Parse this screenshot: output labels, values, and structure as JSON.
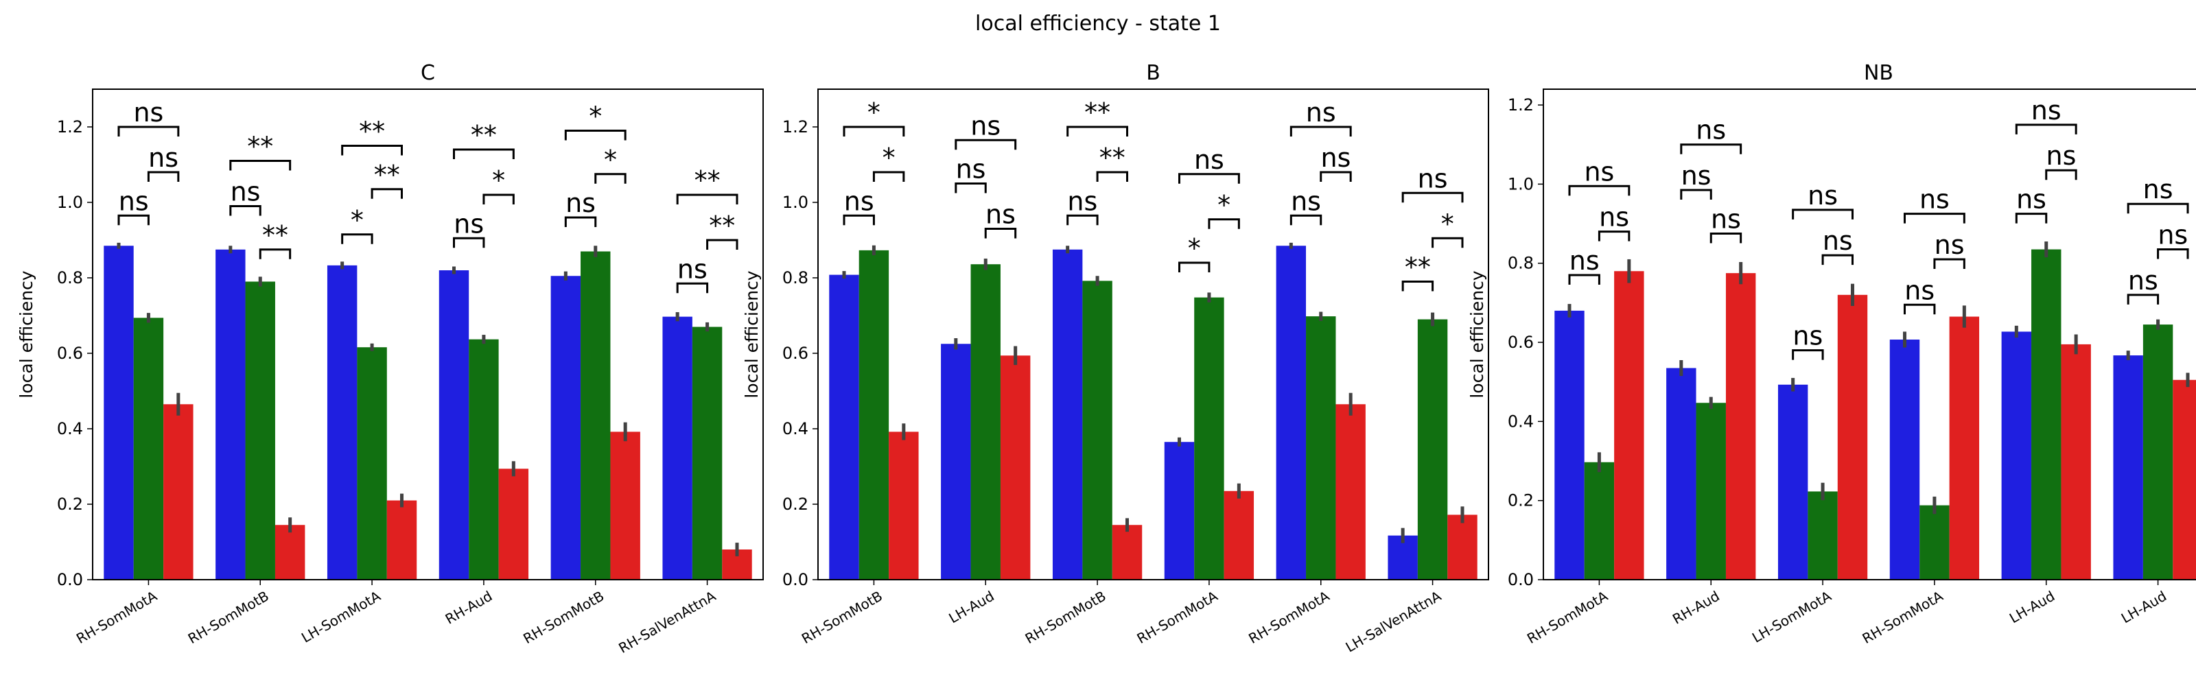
{
  "figure": {
    "suptitle": "local efficiency - state 1"
  },
  "chart_data": [
    {
      "type": "bar",
      "title": "C",
      "xlabel": "",
      "ylabel": "local efficiency",
      "ylim": [
        0,
        1.3
      ],
      "yticks": [
        "0.0",
        "0.2",
        "0.4",
        "0.6",
        "0.8",
        "1.0",
        "1.2"
      ],
      "categories": [
        "RH-SomMotA",
        "RH-SomMotB",
        "LH-SomMotA",
        "RH-Aud",
        "RH-SomMotB",
        "RH-SalVenAttnA"
      ],
      "series": [
        {
          "color": "#1f1fe0",
          "values": [
            0.885,
            0.875,
            0.833,
            0.82,
            0.805,
            0.697
          ],
          "err": [
            0.008,
            0.01,
            0.01,
            0.01,
            0.012,
            0.012
          ]
        },
        {
          "color": "#117011",
          "values": [
            0.694,
            0.79,
            0.616,
            0.637,
            0.87,
            0.67
          ],
          "err": [
            0.013,
            0.013,
            0.01,
            0.012,
            0.015,
            0.012
          ]
        },
        {
          "color": "#e02020",
          "values": [
            0.465,
            0.145,
            0.21,
            0.294,
            0.392,
            0.08
          ],
          "err": [
            0.03,
            0.02,
            0.018,
            0.02,
            0.025,
            0.018
          ]
        }
      ],
      "annotations": [
        {
          "group": 0,
          "from": 0,
          "to": 2,
          "y": 1.2,
          "label": "ns"
        },
        {
          "group": 0,
          "from": 1,
          "to": 2,
          "y": 1.08,
          "label": "ns"
        },
        {
          "group": 0,
          "from": 0,
          "to": 1,
          "y": 0.965,
          "label": "ns"
        },
        {
          "group": 1,
          "from": 0,
          "to": 2,
          "y": 1.11,
          "label": "**"
        },
        {
          "group": 1,
          "from": 0,
          "to": 1,
          "y": 0.99,
          "label": "ns"
        },
        {
          "group": 1,
          "from": 1,
          "to": 2,
          "y": 0.875,
          "label": "**"
        },
        {
          "group": 2,
          "from": 0,
          "to": 2,
          "y": 1.15,
          "label": "**"
        },
        {
          "group": 2,
          "from": 1,
          "to": 2,
          "y": 1.035,
          "label": "**"
        },
        {
          "group": 2,
          "from": 0,
          "to": 1,
          "y": 0.915,
          "label": "*"
        },
        {
          "group": 3,
          "from": 0,
          "to": 2,
          "y": 1.14,
          "label": "**"
        },
        {
          "group": 3,
          "from": 1,
          "to": 2,
          "y": 1.02,
          "label": "*"
        },
        {
          "group": 3,
          "from": 0,
          "to": 1,
          "y": 0.905,
          "label": "ns"
        },
        {
          "group": 4,
          "from": 0,
          "to": 2,
          "y": 1.19,
          "label": "*"
        },
        {
          "group": 4,
          "from": 1,
          "to": 2,
          "y": 1.075,
          "label": "*"
        },
        {
          "group": 4,
          "from": 0,
          "to": 1,
          "y": 0.96,
          "label": "ns"
        },
        {
          "group": 5,
          "from": 0,
          "to": 2,
          "y": 1.02,
          "label": "**"
        },
        {
          "group": 5,
          "from": 1,
          "to": 2,
          "y": 0.9,
          "label": "**"
        },
        {
          "group": 5,
          "from": 0,
          "to": 1,
          "y": 0.785,
          "label": "ns"
        }
      ]
    },
    {
      "type": "bar",
      "title": "B",
      "xlabel": "",
      "ylabel": "local efficiency",
      "ylim": [
        0,
        1.3
      ],
      "yticks": [
        "0.0",
        "0.2",
        "0.4",
        "0.6",
        "0.8",
        "1.0",
        "1.2"
      ],
      "categories": [
        "RH-SomMotB",
        "LH-Aud",
        "RH-SomMotB",
        "RH-SomMotA",
        "RH-SomMotA",
        "LH-SalVenAttnA"
      ],
      "series": [
        {
          "color": "#1f1fe0",
          "values": [
            0.808,
            0.625,
            0.875,
            0.365,
            0.885,
            0.117
          ],
          "err": [
            0.01,
            0.015,
            0.01,
            0.012,
            0.008,
            0.02
          ]
        },
        {
          "color": "#117011",
          "values": [
            0.873,
            0.836,
            0.792,
            0.748,
            0.698,
            0.69
          ],
          "err": [
            0.013,
            0.015,
            0.013,
            0.013,
            0.012,
            0.018
          ]
        },
        {
          "color": "#e02020",
          "values": [
            0.392,
            0.594,
            0.145,
            0.235,
            0.465,
            0.172
          ],
          "err": [
            0.022,
            0.025,
            0.018,
            0.02,
            0.03,
            0.022
          ]
        }
      ],
      "annotations": [
        {
          "group": 0,
          "from": 0,
          "to": 2,
          "y": 1.2,
          "label": "*"
        },
        {
          "group": 0,
          "from": 1,
          "to": 2,
          "y": 1.08,
          "label": "*"
        },
        {
          "group": 0,
          "from": 0,
          "to": 1,
          "y": 0.965,
          "label": "ns"
        },
        {
          "group": 1,
          "from": 0,
          "to": 2,
          "y": 1.165,
          "label": "ns"
        },
        {
          "group": 1,
          "from": 0,
          "to": 1,
          "y": 1.05,
          "label": "ns"
        },
        {
          "group": 1,
          "from": 1,
          "to": 2,
          "y": 0.93,
          "label": "ns"
        },
        {
          "group": 2,
          "from": 0,
          "to": 2,
          "y": 1.2,
          "label": "**"
        },
        {
          "group": 2,
          "from": 1,
          "to": 2,
          "y": 1.08,
          "label": "**"
        },
        {
          "group": 2,
          "from": 0,
          "to": 1,
          "y": 0.965,
          "label": "ns"
        },
        {
          "group": 3,
          "from": 0,
          "to": 2,
          "y": 1.075,
          "label": "ns"
        },
        {
          "group": 3,
          "from": 1,
          "to": 2,
          "y": 0.955,
          "label": "*"
        },
        {
          "group": 3,
          "from": 0,
          "to": 1,
          "y": 0.84,
          "label": "*"
        },
        {
          "group": 4,
          "from": 0,
          "to": 2,
          "y": 1.2,
          "label": "ns"
        },
        {
          "group": 4,
          "from": 1,
          "to": 2,
          "y": 1.08,
          "label": "ns"
        },
        {
          "group": 4,
          "from": 0,
          "to": 1,
          "y": 0.965,
          "label": "ns"
        },
        {
          "group": 5,
          "from": 0,
          "to": 2,
          "y": 1.025,
          "label": "ns"
        },
        {
          "group": 5,
          "from": 1,
          "to": 2,
          "y": 0.905,
          "label": "*"
        },
        {
          "group": 5,
          "from": 0,
          "to": 1,
          "y": 0.79,
          "label": "**"
        }
      ]
    },
    {
      "type": "bar",
      "title": "NB",
      "xlabel": "",
      "ylabel": "local efficiency",
      "ylim": [
        0,
        1.24
      ],
      "yticks": [
        "0.0",
        "0.2",
        "0.4",
        "0.6",
        "0.8",
        "1.0",
        "1.2"
      ],
      "categories": [
        "RH-SomMotA",
        "RH-Aud",
        "LH-SomMotA",
        "RH-SomMotA",
        "LH-Aud",
        "LH-Aud"
      ],
      "series": [
        {
          "color": "#1f1fe0",
          "values": [
            0.68,
            0.535,
            0.493,
            0.607,
            0.627,
            0.567
          ],
          "err": [
            0.017,
            0.02,
            0.017,
            0.02,
            0.015,
            0.012
          ]
        },
        {
          "color": "#117011",
          "values": [
            0.297,
            0.447,
            0.223,
            0.188,
            0.835,
            0.645
          ],
          "err": [
            0.025,
            0.015,
            0.022,
            0.022,
            0.02,
            0.013
          ]
        },
        {
          "color": "#e02020",
          "values": [
            0.78,
            0.775,
            0.72,
            0.665,
            0.595,
            0.505
          ],
          "err": [
            0.03,
            0.028,
            0.028,
            0.028,
            0.025,
            0.018
          ]
        }
      ],
      "annotations": [
        {
          "group": 0,
          "from": 0,
          "to": 2,
          "y": 0.995,
          "label": "ns"
        },
        {
          "group": 0,
          "from": 1,
          "to": 2,
          "y": 0.88,
          "label": "ns"
        },
        {
          "group": 0,
          "from": 0,
          "to": 1,
          "y": 0.77,
          "label": "ns"
        },
        {
          "group": 1,
          "from": 0,
          "to": 2,
          "y": 1.1,
          "label": "ns"
        },
        {
          "group": 1,
          "from": 0,
          "to": 1,
          "y": 0.985,
          "label": "ns"
        },
        {
          "group": 1,
          "from": 1,
          "to": 2,
          "y": 0.875,
          "label": "ns"
        },
        {
          "group": 2,
          "from": 0,
          "to": 2,
          "y": 0.935,
          "label": "ns"
        },
        {
          "group": 2,
          "from": 1,
          "to": 2,
          "y": 0.82,
          "label": "ns"
        },
        {
          "group": 2,
          "from": 0,
          "to": 1,
          "y": 0.58,
          "label": "ns"
        },
        {
          "group": 3,
          "from": 0,
          "to": 2,
          "y": 0.925,
          "label": "ns"
        },
        {
          "group": 3,
          "from": 1,
          "to": 2,
          "y": 0.81,
          "label": "ns"
        },
        {
          "group": 3,
          "from": 0,
          "to": 1,
          "y": 0.695,
          "label": "ns"
        },
        {
          "group": 4,
          "from": 0,
          "to": 2,
          "y": 1.15,
          "label": "ns"
        },
        {
          "group": 4,
          "from": 1,
          "to": 2,
          "y": 1.035,
          "label": "ns"
        },
        {
          "group": 4,
          "from": 0,
          "to": 1,
          "y": 0.925,
          "label": "ns"
        },
        {
          "group": 5,
          "from": 0,
          "to": 2,
          "y": 0.95,
          "label": "ns"
        },
        {
          "group": 5,
          "from": 1,
          "to": 2,
          "y": 0.835,
          "label": "ns"
        },
        {
          "group": 5,
          "from": 0,
          "to": 1,
          "y": 0.72,
          "label": "ns"
        }
      ]
    }
  ]
}
